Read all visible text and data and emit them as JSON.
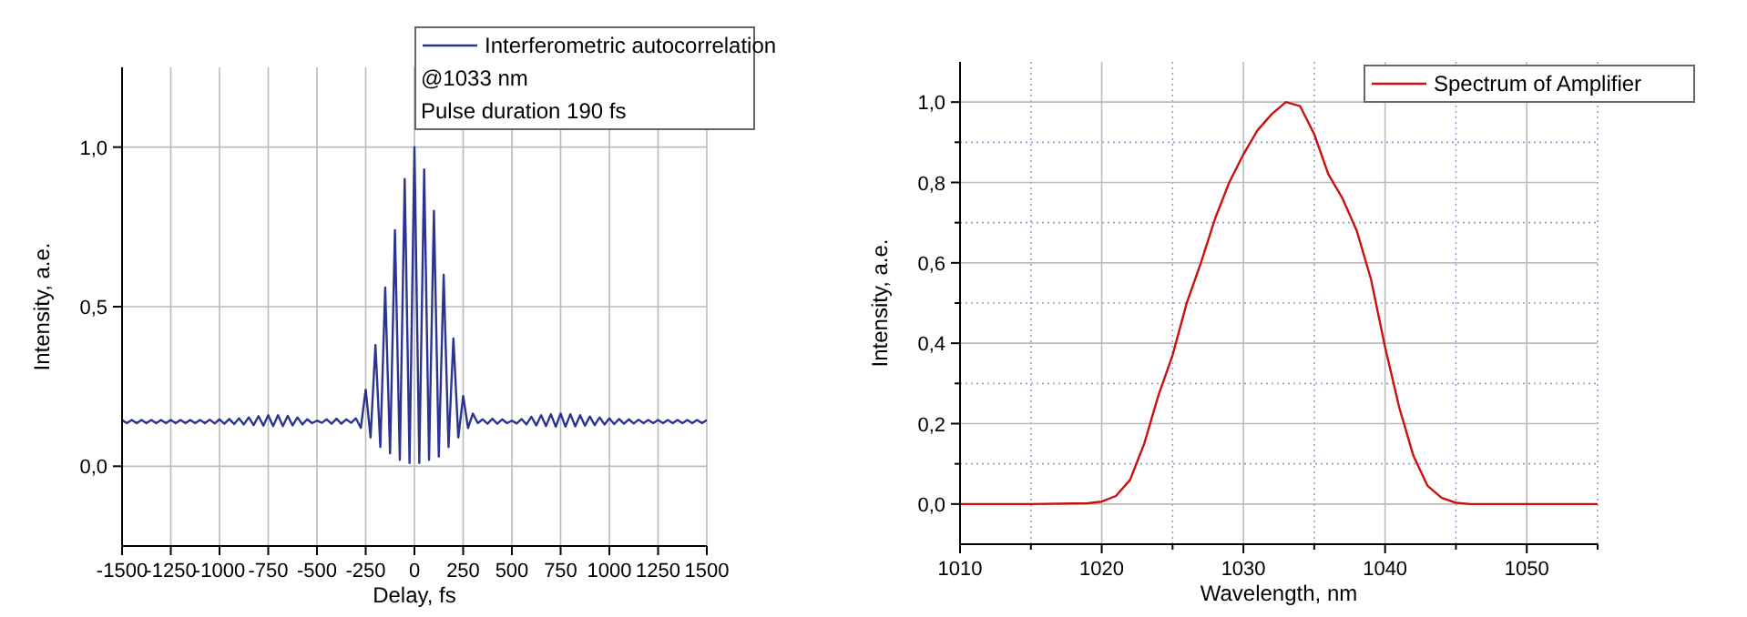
{
  "chart_data": [
    {
      "type": "line",
      "xlabel": "Delay, fs",
      "ylabel": "Intensity, a.e.",
      "xlim": [
        -1500,
        1500
      ],
      "ylim": [
        -0.25,
        1.25
      ],
      "xticks": [
        -1500,
        -1250,
        -1000,
        -750,
        -500,
        -250,
        0,
        250,
        500,
        750,
        1000,
        1250,
        1500
      ],
      "yticks": [
        {
          "value": 0,
          "label": "0,0"
        },
        {
          "value": 0.5,
          "label": "0,5"
        },
        {
          "value": 1,
          "label": "1,0"
        }
      ],
      "grid": true,
      "legend": "top right",
      "annotations": [
        "@1033 nm",
        "Pulse duration 190 fs"
      ],
      "series": [
        {
          "name": "Interferometric autocorrelation",
          "color": "#2b3590",
          "x": [
            -1500,
            -1475,
            -1450,
            -1425,
            -1400,
            -1375,
            -1350,
            -1325,
            -1300,
            -1275,
            -1250,
            -1225,
            -1200,
            -1175,
            -1150,
            -1125,
            -1100,
            -1075,
            -1050,
            -1025,
            -1000,
            -975,
            -950,
            -925,
            -900,
            -875,
            -850,
            -825,
            -800,
            -775,
            -750,
            -725,
            -700,
            -675,
            -650,
            -625,
            -600,
            -575,
            -550,
            -525,
            -500,
            -475,
            -450,
            -425,
            -400,
            -375,
            -350,
            -325,
            -300,
            -275,
            -250,
            -225,
            -200,
            -175,
            -150,
            -125,
            -100,
            -75,
            -50,
            -25,
            0,
            25,
            50,
            75,
            100,
            125,
            150,
            175,
            200,
            225,
            250,
            275,
            300,
            325,
            350,
            375,
            400,
            425,
            450,
            475,
            500,
            525,
            550,
            575,
            600,
            625,
            650,
            675,
            700,
            725,
            750,
            775,
            800,
            825,
            850,
            875,
            900,
            925,
            950,
            975,
            1000,
            1025,
            1050,
            1075,
            1100,
            1125,
            1150,
            1175,
            1200,
            1225,
            1250,
            1275,
            1300,
            1325,
            1350,
            1375,
            1400,
            1425,
            1450,
            1475,
            1500
          ],
          "values": [
            0.145,
            0.135,
            0.145,
            0.135,
            0.145,
            0.135,
            0.145,
            0.135,
            0.145,
            0.135,
            0.145,
            0.135,
            0.145,
            0.135,
            0.145,
            0.135,
            0.145,
            0.135,
            0.146,
            0.134,
            0.147,
            0.133,
            0.148,
            0.132,
            0.15,
            0.131,
            0.153,
            0.129,
            0.157,
            0.127,
            0.16,
            0.126,
            0.16,
            0.126,
            0.158,
            0.128,
            0.153,
            0.131,
            0.147,
            0.135,
            0.143,
            0.136,
            0.147,
            0.133,
            0.149,
            0.133,
            0.147,
            0.136,
            0.15,
            0.12,
            0.24,
            0.09,
            0.38,
            0.06,
            0.56,
            0.04,
            0.74,
            0.02,
            0.9,
            0.01,
            1.0,
            0.01,
            0.93,
            0.02,
            0.8,
            0.03,
            0.6,
            0.06,
            0.4,
            0.09,
            0.22,
            0.12,
            0.165,
            0.135,
            0.147,
            0.133,
            0.149,
            0.133,
            0.147,
            0.135,
            0.143,
            0.134,
            0.148,
            0.131,
            0.155,
            0.128,
            0.16,
            0.126,
            0.163,
            0.124,
            0.165,
            0.124,
            0.163,
            0.125,
            0.16,
            0.127,
            0.156,
            0.129,
            0.153,
            0.131,
            0.15,
            0.132,
            0.148,
            0.133,
            0.147,
            0.134,
            0.146,
            0.135,
            0.145,
            0.135,
            0.145,
            0.135,
            0.145,
            0.135,
            0.145,
            0.135,
            0.145,
            0.135,
            0.145,
            0.135,
            0.145
          ]
        }
      ]
    },
    {
      "type": "line",
      "xlabel": "Wavelength, nm",
      "ylabel": "Intensity, a.e.",
      "xlim": [
        1010,
        1055
      ],
      "ylim": [
        -0.1,
        1.1
      ],
      "xticks": [
        1010,
        {
          "value": 1015,
          "label": null
        },
        1020,
        {
          "value": 1025,
          "label": null
        },
        1030,
        {
          "value": 1035,
          "label": null
        },
        1040,
        {
          "value": 1045,
          "label": null
        },
        1050,
        {
          "value": 1055,
          "label": null
        }
      ],
      "yticks": [
        {
          "value": 0,
          "label": "0,0"
        },
        {
          "value": 0.1,
          "label": null
        },
        {
          "value": 0.2,
          "label": "0,2"
        },
        {
          "value": 0.3,
          "label": null
        },
        {
          "value": 0.4,
          "label": "0,4"
        },
        {
          "value": 0.5,
          "label": null
        },
        {
          "value": 0.6,
          "label": "0,6"
        },
        {
          "value": 0.7,
          "label": null
        },
        {
          "value": 0.8,
          "label": "0,8"
        },
        {
          "value": 0.9,
          "label": null
        },
        {
          "value": 1,
          "label": "1,0"
        }
      ],
      "grid": true,
      "legend": "top right",
      "series": [
        {
          "name": "Spectrum of Amplifier",
          "color": "#cc1010",
          "x": [
            1010,
            1015,
            1019,
            1020,
            1021,
            1022,
            1023,
            1024,
            1025,
            1026,
            1027,
            1028,
            1029,
            1030,
            1031,
            1032,
            1033,
            1034,
            1035,
            1036,
            1037,
            1038,
            1039,
            1040,
            1041,
            1042,
            1043,
            1044,
            1045,
            1046,
            1050,
            1055
          ],
          "values": [
            0,
            0,
            0.002,
            0.006,
            0.02,
            0.06,
            0.15,
            0.27,
            0.37,
            0.5,
            0.6,
            0.71,
            0.8,
            0.87,
            0.93,
            0.97,
            1.0,
            0.99,
            0.92,
            0.82,
            0.76,
            0.68,
            0.56,
            0.39,
            0.24,
            0.12,
            0.045,
            0.015,
            0.003,
            0,
            0,
            0
          ]
        }
      ]
    }
  ]
}
